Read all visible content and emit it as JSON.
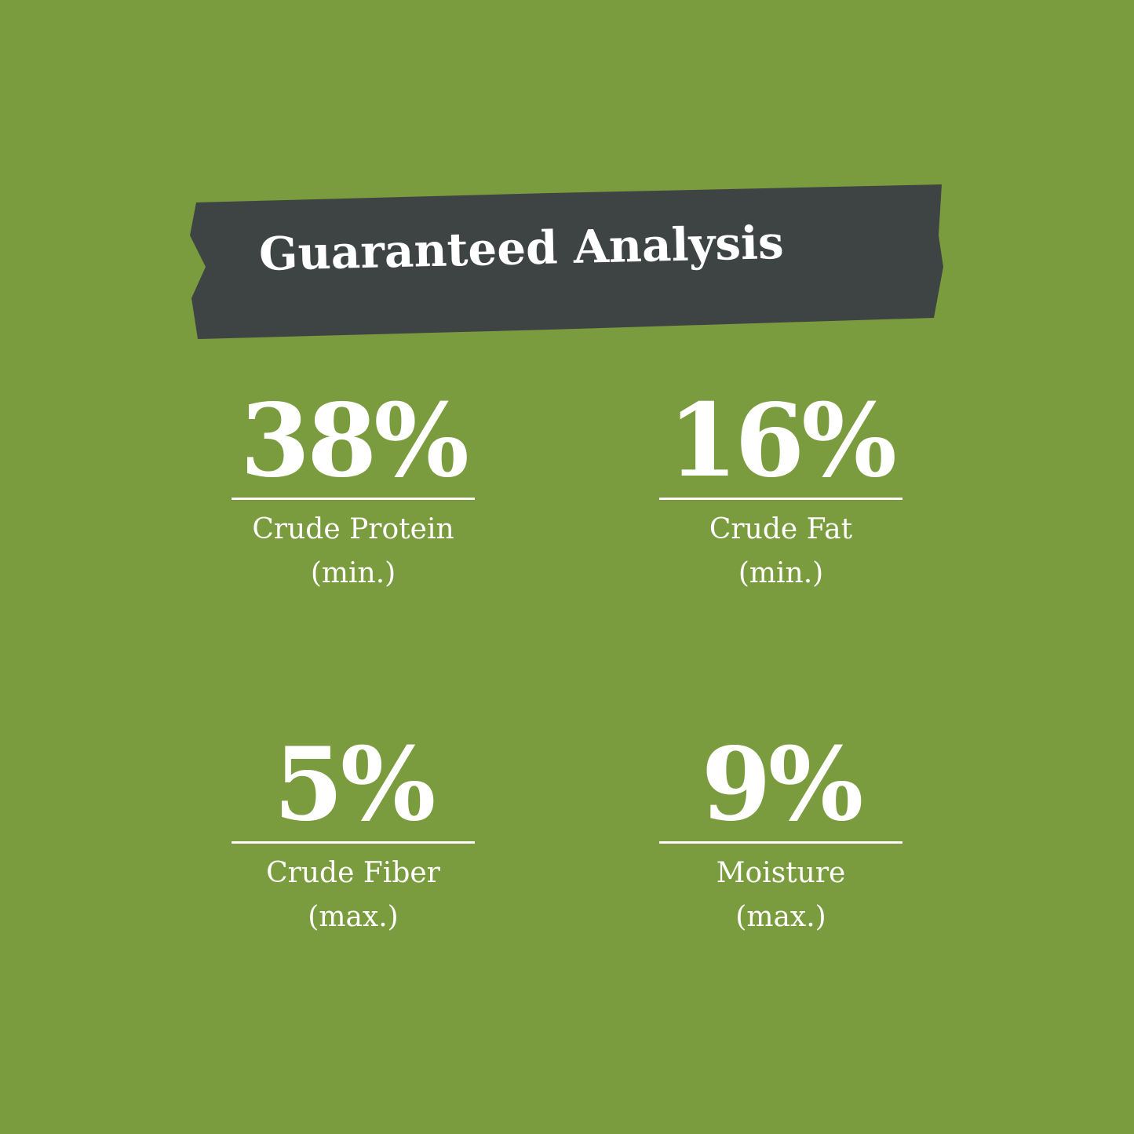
{
  "colors": {
    "background": "#7a9c3e",
    "banner": "#3e4443",
    "text": "#ffffff"
  },
  "title": "Guaranteed Analysis",
  "stats": [
    {
      "value": "38%",
      "label": "Crude Protein",
      "qualifier": "(min.)"
    },
    {
      "value": "16%",
      "label": "Crude Fat",
      "qualifier": "(min.)"
    },
    {
      "value": "5%",
      "label": "Crude Fiber",
      "qualifier": "(max.)"
    },
    {
      "value": "9%",
      "label": "Moisture",
      "qualifier": "(max.)"
    }
  ]
}
